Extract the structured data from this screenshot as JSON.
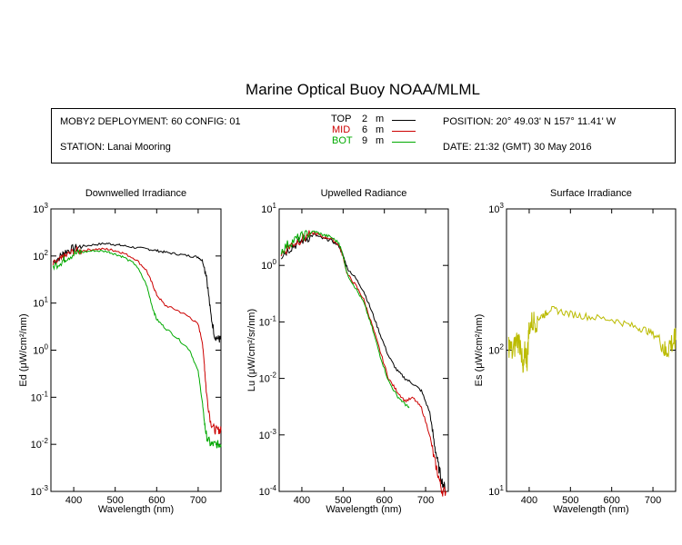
{
  "title": "Marine Optical Buoy NOAA/MLML",
  "info": {
    "deployment": "MOBY2 DEPLOYMENT: 60 CONFIG: 01",
    "station": "STATION: Lanai Mooring",
    "position": "POSITION: 20° 49.03' N   157° 11.41' W",
    "date": "DATE: 21:32 (GMT) 30 May 2016"
  },
  "legend": [
    {
      "label": "TOP",
      "depth": "2",
      "unit": "m",
      "color": "#000000"
    },
    {
      "label": "MID",
      "depth": "6",
      "unit": "m",
      "color": "#cc0000"
    },
    {
      "label": "BOT",
      "depth": "9",
      "unit": "m",
      "color": "#00aa00"
    }
  ],
  "chart_data": [
    {
      "type": "line",
      "title": "Downwelled Irradiance",
      "xlabel": "Wavelength (nm)",
      "ylabel": "Ed  (μW/cm²/nm)",
      "xlim": [
        345,
        755
      ],
      "ylim": [
        0.001,
        1000
      ],
      "yscale": "log",
      "xticks": [
        400,
        500,
        600,
        700
      ],
      "ytick_exponents": [
        -3,
        -2,
        -1,
        0,
        1,
        2,
        3
      ],
      "series": [
        {
          "name": "TOP",
          "color": "#000000",
          "x": [
            350,
            370,
            380,
            400,
            420,
            450,
            480,
            500,
            520,
            550,
            580,
            600,
            620,
            650,
            680,
            700,
            710,
            720,
            730,
            740,
            750,
            755
          ],
          "y": [
            75,
            100,
            125,
            145,
            160,
            175,
            185,
            175,
            165,
            150,
            140,
            130,
            120,
            110,
            100,
            95,
            80,
            40,
            6,
            2.0,
            1.7,
            1.7
          ]
        },
        {
          "name": "MID",
          "color": "#cc0000",
          "x": [
            350,
            370,
            380,
            400,
            420,
            450,
            480,
            500,
            520,
            550,
            575,
            590,
            600,
            620,
            650,
            680,
            700,
            710,
            715,
            720,
            730,
            740,
            750,
            755
          ],
          "y": [
            65,
            85,
            100,
            125,
            130,
            140,
            140,
            130,
            115,
            85,
            50,
            25,
            15,
            9,
            7,
            5,
            3.5,
            1.5,
            0.5,
            0.12,
            0.03,
            0.02,
            0.02,
            0.02
          ]
        },
        {
          "name": "BOT",
          "color": "#00aa00",
          "x": [
            350,
            370,
            380,
            400,
            420,
            450,
            480,
            500,
            520,
            550,
            575,
            590,
            600,
            620,
            650,
            680,
            700,
            710,
            715,
            720,
            730,
            740,
            750,
            755
          ],
          "y": [
            60,
            75,
            90,
            110,
            120,
            130,
            125,
            110,
            95,
            65,
            25,
            8,
            4.5,
            3.0,
            1.8,
            1.0,
            0.35,
            0.08,
            0.03,
            0.015,
            0.01,
            0.01,
            0.01,
            0.01
          ]
        }
      ]
    },
    {
      "type": "line",
      "title": "Upwelled Radiance",
      "xlabel": "Wavelength (nm)",
      "ylabel": "Lu  (μW/cm²/sr/nm)",
      "xlim": [
        345,
        755
      ],
      "ylim": [
        0.0001,
        10
      ],
      "yscale": "log",
      "xticks": [
        400,
        500,
        600,
        700
      ],
      "ytick_exponents": [
        -4,
        -3,
        -2,
        -1,
        0,
        1
      ],
      "series": [
        {
          "name": "TOP",
          "color": "#000000",
          "x": [
            350,
            370,
            390,
            410,
            430,
            450,
            470,
            490,
            500,
            510,
            530,
            550,
            570,
            590,
            610,
            630,
            650,
            670,
            690,
            710,
            720,
            730,
            740,
            750
          ],
          "y": [
            1.5,
            2.0,
            2.5,
            3.0,
            3.5,
            3.0,
            2.8,
            2.2,
            1.5,
            0.9,
            0.6,
            0.35,
            0.15,
            0.06,
            0.025,
            0.014,
            0.01,
            0.008,
            0.006,
            0.0025,
            0.0008,
            0.0003,
            0.00015,
            0.0001
          ]
        },
        {
          "name": "MID",
          "color": "#cc0000",
          "x": [
            350,
            370,
            390,
            410,
            430,
            450,
            470,
            490,
            500,
            510,
            530,
            550,
            570,
            590,
            610,
            630,
            650,
            670,
            690,
            710,
            720,
            730,
            740,
            750
          ],
          "y": [
            1.6,
            2.2,
            2.7,
            3.2,
            3.8,
            3.2,
            3.0,
            2.3,
            1.4,
            0.7,
            0.45,
            0.25,
            0.09,
            0.03,
            0.01,
            0.006,
            0.004,
            0.0045,
            0.003,
            0.001,
            0.0004,
            0.0002,
            0.0001,
            0.0001
          ]
        },
        {
          "name": "BOT",
          "color": "#00aa00",
          "x": [
            350,
            370,
            390,
            410,
            430,
            450,
            470,
            490,
            500,
            510,
            530,
            550,
            570,
            590,
            610,
            630,
            650,
            660
          ],
          "y": [
            1.8,
            2.5,
            3.0,
            3.5,
            4.0,
            3.5,
            3.2,
            2.5,
            1.5,
            0.7,
            0.4,
            0.22,
            0.08,
            0.025,
            0.009,
            0.005,
            0.0035,
            0.003
          ]
        }
      ]
    },
    {
      "type": "line",
      "title": "Surface Irradiance",
      "xlabel": "Wavelength (nm)",
      "ylabel": "Es  (μW/cm²/nm)",
      "xlim": [
        345,
        755
      ],
      "ylim": [
        10,
        1000
      ],
      "yscale": "log",
      "xticks": [
        400,
        500,
        600,
        700
      ],
      "ytick_exponents": [
        1,
        2,
        3
      ],
      "series": [
        {
          "name": "",
          "color": "#bbbb00",
          "x": [
            350,
            360,
            370,
            380,
            385,
            390,
            395,
            400,
            410,
            420,
            430,
            440,
            450,
            470,
            500,
            530,
            560,
            600,
            630,
            660,
            680,
            700,
            720,
            730,
            740,
            750,
            755
          ],
          "y": [
            110,
            95,
            120,
            110,
            65,
            100,
            85,
            150,
            160,
            165,
            175,
            180,
            195,
            190,
            180,
            175,
            170,
            165,
            155,
            145,
            140,
            130,
            120,
            95,
            110,
            115,
            118
          ]
        }
      ]
    }
  ]
}
